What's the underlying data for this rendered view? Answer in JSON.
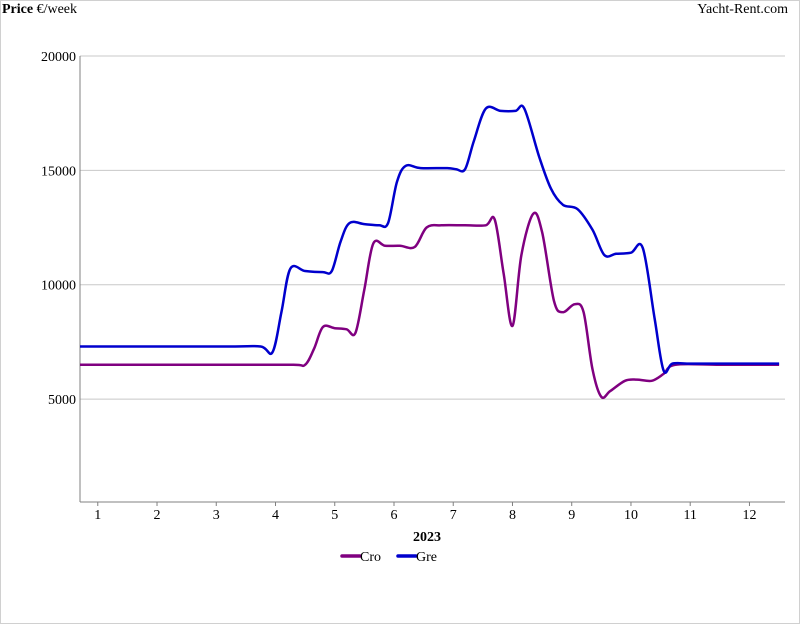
{
  "header": {
    "ylabel_bold": "Price",
    "ylabel_unit": "€/week",
    "brand": "Yacht-Rent.com"
  },
  "chart_data": {
    "type": "line",
    "xlabel": "2023",
    "ylabel": "Price €/week",
    "x_ticks": [
      "1",
      "2",
      "3",
      "4",
      "5",
      "6",
      "7",
      "8",
      "9",
      "10",
      "11",
      "12"
    ],
    "y_ticks": [
      5000,
      10000,
      15000,
      20000
    ],
    "xlim": [
      0.7,
      12.6
    ],
    "ylim": [
      500,
      20000
    ],
    "grid": "horizontal",
    "legend": "bottom-center",
    "series": [
      {
        "name": "Cro",
        "color": "#800080",
        "points": [
          [
            0.7,
            6500
          ],
          [
            3.2,
            6500
          ],
          [
            4.3,
            6500
          ],
          [
            4.5,
            6500
          ],
          [
            4.65,
            7200
          ],
          [
            4.8,
            8150
          ],
          [
            5.0,
            8100
          ],
          [
            5.2,
            8050
          ],
          [
            5.35,
            7900
          ],
          [
            5.5,
            9800
          ],
          [
            5.65,
            11800
          ],
          [
            5.85,
            11700
          ],
          [
            6.1,
            11700
          ],
          [
            6.35,
            11650
          ],
          [
            6.55,
            12500
          ],
          [
            6.8,
            12600
          ],
          [
            7.2,
            12600
          ],
          [
            7.55,
            12600
          ],
          [
            7.7,
            12850
          ],
          [
            7.85,
            10500
          ],
          [
            8.0,
            8200
          ],
          [
            8.15,
            11300
          ],
          [
            8.35,
            13100
          ],
          [
            8.5,
            12300
          ],
          [
            8.7,
            9300
          ],
          [
            8.85,
            8800
          ],
          [
            9.05,
            9150
          ],
          [
            9.2,
            8800
          ],
          [
            9.35,
            6300
          ],
          [
            9.5,
            5100
          ],
          [
            9.65,
            5350
          ],
          [
            9.9,
            5800
          ],
          [
            10.1,
            5850
          ],
          [
            10.35,
            5800
          ],
          [
            10.55,
            6100
          ],
          [
            10.75,
            6500
          ],
          [
            11.5,
            6500
          ],
          [
            12.5,
            6500
          ]
        ]
      },
      {
        "name": "Gre",
        "color": "#0000CD",
        "points": [
          [
            0.7,
            7300
          ],
          [
            3.2,
            7300
          ],
          [
            3.75,
            7300
          ],
          [
            3.95,
            7050
          ],
          [
            4.1,
            8800
          ],
          [
            4.25,
            10700
          ],
          [
            4.5,
            10600
          ],
          [
            4.8,
            10550
          ],
          [
            4.95,
            10600
          ],
          [
            5.1,
            11900
          ],
          [
            5.25,
            12700
          ],
          [
            5.5,
            12650
          ],
          [
            5.75,
            12600
          ],
          [
            5.9,
            12700
          ],
          [
            6.05,
            14500
          ],
          [
            6.2,
            15200
          ],
          [
            6.45,
            15100
          ],
          [
            6.9,
            15100
          ],
          [
            7.05,
            15050
          ],
          [
            7.2,
            15050
          ],
          [
            7.35,
            16300
          ],
          [
            7.55,
            17700
          ],
          [
            7.8,
            17600
          ],
          [
            8.05,
            17600
          ],
          [
            8.2,
            17700
          ],
          [
            8.45,
            15600
          ],
          [
            8.65,
            14200
          ],
          [
            8.85,
            13500
          ],
          [
            9.1,
            13300
          ],
          [
            9.35,
            12400
          ],
          [
            9.55,
            11300
          ],
          [
            9.75,
            11350
          ],
          [
            10.0,
            11400
          ],
          [
            10.2,
            11600
          ],
          [
            10.4,
            8500
          ],
          [
            10.55,
            6250
          ],
          [
            10.7,
            6550
          ],
          [
            11.0,
            6550
          ],
          [
            11.5,
            6550
          ],
          [
            12.5,
            6550
          ]
        ]
      }
    ]
  }
}
